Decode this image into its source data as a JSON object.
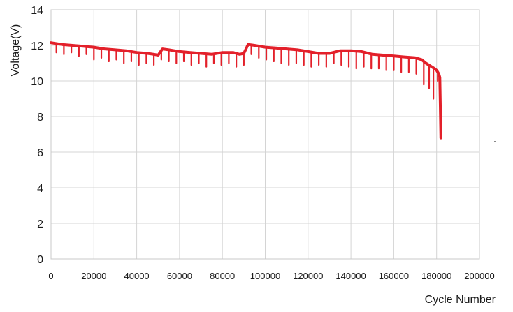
{
  "chart_data": {
    "type": "line",
    "title": "",
    "xlabel": "Cycle Number",
    "ylabel": "Voltage(V)",
    "xlim": [
      0,
      200000
    ],
    "ylim": [
      0,
      14
    ],
    "xticks": [
      0,
      20000,
      40000,
      60000,
      80000,
      100000,
      120000,
      140000,
      160000,
      180000,
      200000
    ],
    "yticks": [
      0,
      2,
      4,
      6,
      8,
      10,
      12,
      14
    ],
    "grid": true,
    "legend": "none",
    "series": [
      {
        "color": "#e3202a",
        "x": [
          0,
          5000,
          10000,
          15000,
          20000,
          25000,
          30000,
          35000,
          40000,
          45000,
          48000,
          50000,
          52000,
          55000,
          60000,
          65000,
          70000,
          75000,
          80000,
          85000,
          88000,
          90000,
          92000,
          95000,
          100000,
          105000,
          110000,
          115000,
          120000,
          125000,
          130000,
          135000,
          140000,
          145000,
          150000,
          155000,
          160000,
          165000,
          170000,
          173000,
          175000,
          177000,
          179000,
          180000,
          181000,
          181500,
          182000
        ],
        "y": [
          12.15,
          12.05,
          12.0,
          11.95,
          11.9,
          11.8,
          11.75,
          11.7,
          11.6,
          11.55,
          11.5,
          11.45,
          11.8,
          11.75,
          11.65,
          11.6,
          11.55,
          11.5,
          11.6,
          11.6,
          11.5,
          11.55,
          12.05,
          12.0,
          11.9,
          11.85,
          11.8,
          11.75,
          11.65,
          11.55,
          11.55,
          11.7,
          11.7,
          11.65,
          11.5,
          11.45,
          11.4,
          11.35,
          11.3,
          11.2,
          11.0,
          10.85,
          10.7,
          10.6,
          10.4,
          10.2,
          6.8
        ]
      }
    ],
    "dips": {
      "x": [
        2500,
        6000,
        9500,
        13000,
        16500,
        20000,
        23500,
        27000,
        30500,
        34000,
        37500,
        41000,
        44500,
        48000,
        51500,
        55000,
        58500,
        62000,
        65500,
        69000,
        72500,
        76000,
        79500,
        83000,
        86500,
        90000,
        93500,
        97000,
        100500,
        104000,
        107500,
        111000,
        114500,
        118000,
        121500,
        125000,
        128500,
        132000,
        135500,
        139000,
        142500,
        146000,
        149500,
        153000,
        156500,
        160000,
        163500,
        167000,
        170500,
        174000,
        176500,
        178500,
        180500
      ],
      "y": [
        11.6,
        11.5,
        11.6,
        11.4,
        11.5,
        11.2,
        11.3,
        11.1,
        11.2,
        11.0,
        11.1,
        10.9,
        11.0,
        10.9,
        11.2,
        11.1,
        11.0,
        11.1,
        10.9,
        11.0,
        10.8,
        11.0,
        10.9,
        11.0,
        10.8,
        10.9,
        11.5,
        11.3,
        11.2,
        11.1,
        11.0,
        10.9,
        11.0,
        10.9,
        10.8,
        10.9,
        10.8,
        11.0,
        10.9,
        10.8,
        10.7,
        10.8,
        10.7,
        10.7,
        10.6,
        10.6,
        10.5,
        10.5,
        10.4,
        9.8,
        9.6,
        9.0,
        10.0
      ]
    }
  }
}
